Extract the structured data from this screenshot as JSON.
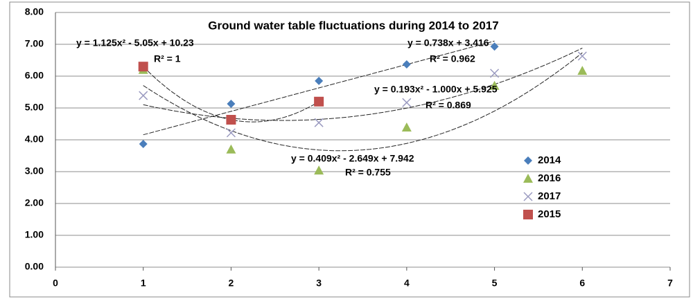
{
  "chart_data": {
    "type": "scatter",
    "title": "Ground water table fluctuations  during 2014 to 2017",
    "xlim": [
      0,
      7
    ],
    "xticks": [
      0,
      1,
      2,
      3,
      4,
      5,
      6,
      7
    ],
    "ylim": [
      0,
      8
    ],
    "yticks": [
      {
        "value": 0,
        "label": "0.00"
      },
      {
        "value": 1,
        "label": "1.00"
      },
      {
        "value": 2,
        "label": "2.00"
      },
      {
        "value": 3,
        "label": "3.00"
      },
      {
        "value": 4,
        "label": "4.00"
      },
      {
        "value": 5,
        "label": "5.00"
      },
      {
        "value": 6,
        "label": "6.00"
      },
      {
        "value": 7,
        "label": "7.00"
      },
      {
        "value": 8,
        "label": "8.00"
      }
    ],
    "grid": true,
    "series": [
      {
        "name": "2014",
        "color": "#4a7ebb",
        "marker": "diamond",
        "trendline": "linear",
        "x": [
          1,
          2,
          3,
          4,
          5
        ],
        "values": [
          3.87,
          5.13,
          5.85,
          6.37,
          6.93
        ]
      },
      {
        "name": "2016",
        "color": "#9bbb59",
        "marker": "triangle",
        "trendline": "poly2",
        "x": [
          1,
          2,
          3,
          4,
          5,
          6
        ],
        "values": [
          6.2,
          3.7,
          3.04,
          4.39,
          5.7,
          6.17
        ]
      },
      {
        "name": "2017",
        "color": "#9a9ac0",
        "marker": "x",
        "trendline": "poly2",
        "x": [
          1,
          2,
          3,
          4,
          5,
          6
        ],
        "values": [
          5.39,
          4.22,
          4.54,
          5.17,
          6.09,
          6.63
        ]
      },
      {
        "name": "2015",
        "color": "#c0504d",
        "marker": "square",
        "trendline": "poly2",
        "x": [
          1,
          2,
          3
        ],
        "values": [
          6.3,
          4.63,
          5.2
        ]
      }
    ],
    "annotations": [
      "y = 1.125x² - 5.05x + 10.23",
      "R² = 1",
      "y = 0.738x + 3.416",
      "R² = 0.962",
      "y = 0.193x² - 1.000x + 5.925",
      "R² = 0.869",
      "y = 0.409x² - 2.649x + 7.942",
      "R² = 0.755"
    ]
  }
}
